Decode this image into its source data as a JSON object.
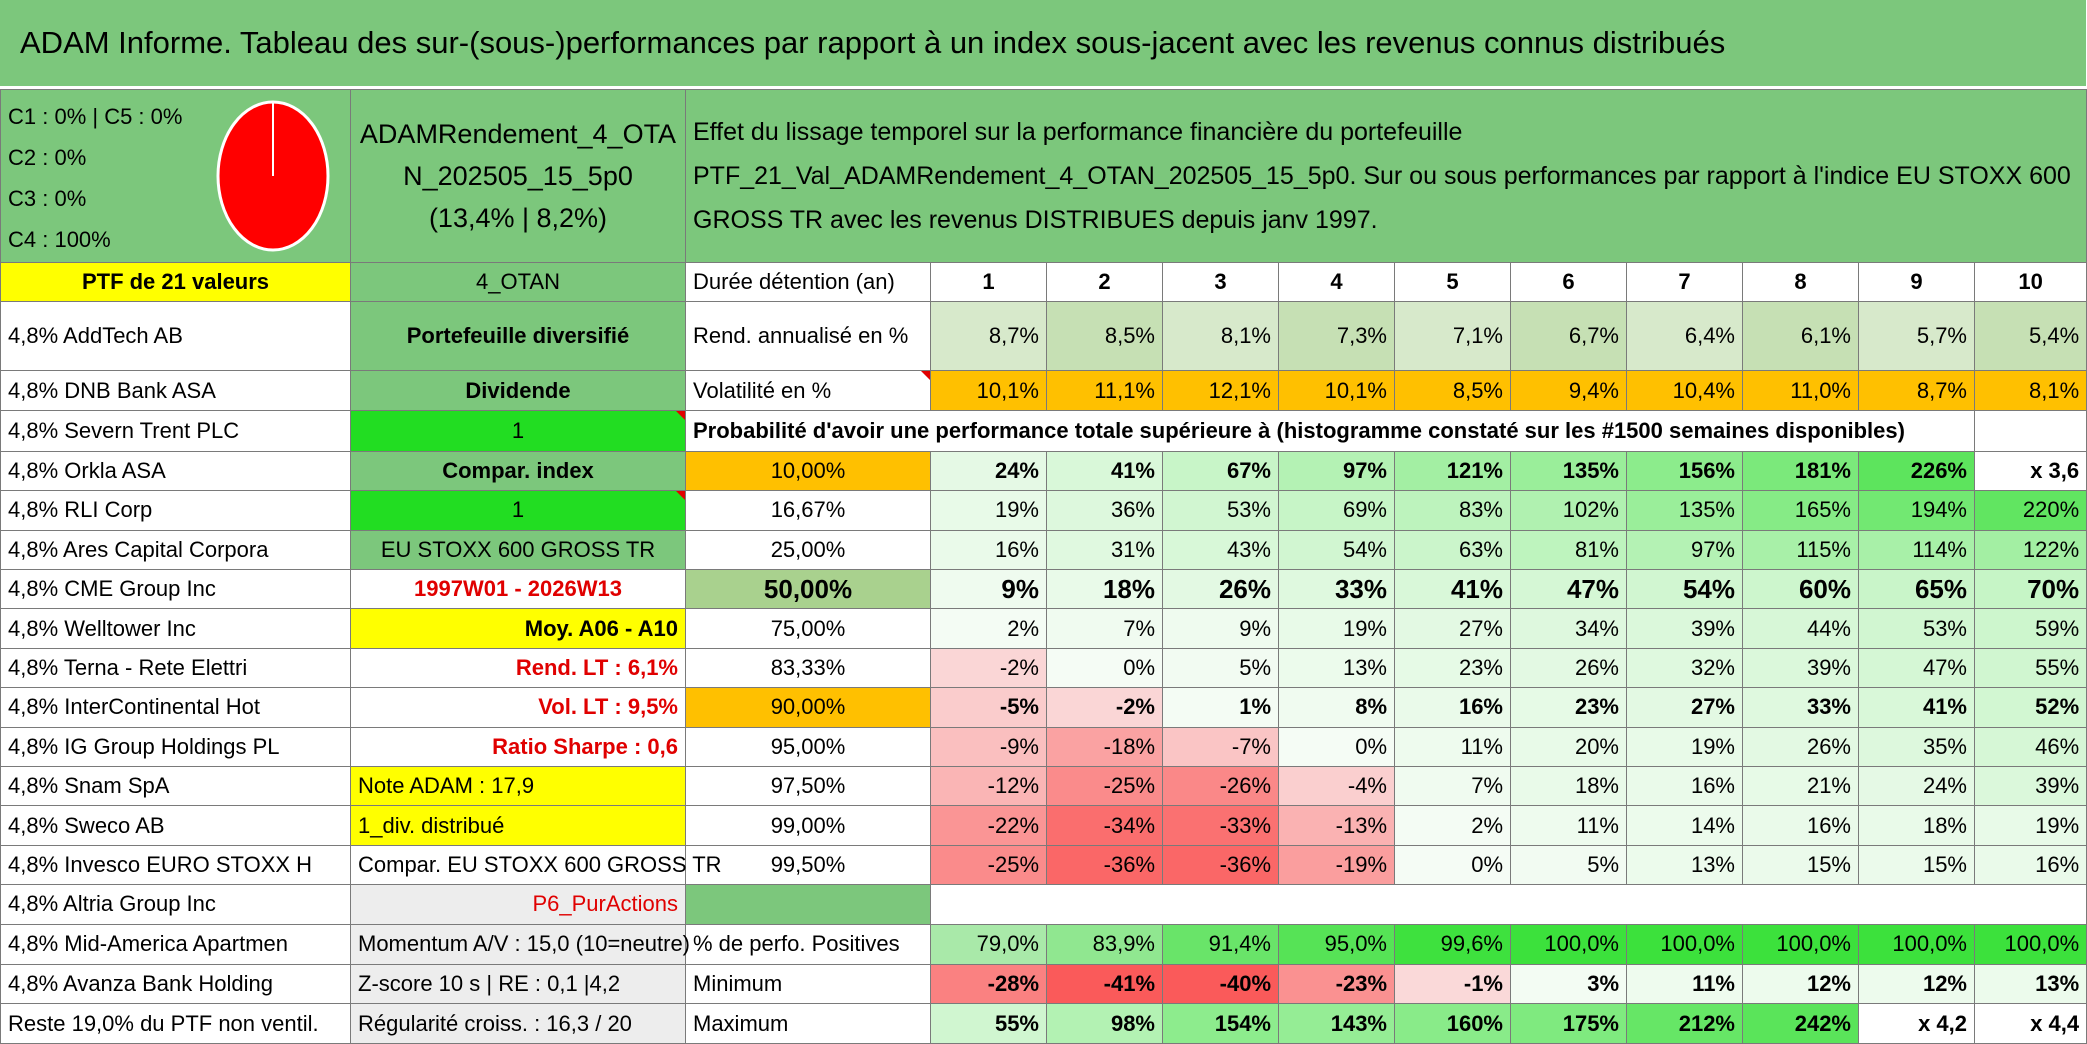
{
  "title": "ADAM Informe. Tableau des sur-(sous-)performances par rapport à un index sous-jacent avec les revenus connus distribués",
  "legend": {
    "c1c5": "C1 : 0% | C5 : 0%",
    "c2": "C2 : 0%",
    "c3": "C3 : 0%",
    "c4": "C4 : 100%"
  },
  "pie": {
    "fill": "#ff0000",
    "label": "pie-chart"
  },
  "portfolio": {
    "name": "ADAMRendement_4_OTAN_202505_15_5p0",
    "perf": "(13,4% | 8,2%)"
  },
  "description": "Effet du lissage temporel sur la performance financière du portefeuille PTF_21_Val_ADAMRendement_4_OTAN_202505_15_5p0. Sur ou sous performances par rapport à l'indice EU STOXX 600 GROSS TR avec les revenus DISTRIBUES depuis janv 1997.",
  "holdings": [
    "PTF de 21 valeurs",
    "4,8% AddTech AB",
    "4,8% DNB Bank ASA",
    "4,8% Severn Trent PLC",
    "4,8% Orkla ASA",
    "4,8% RLI Corp",
    "4,8% Ares Capital Corpora",
    "4,8% CME Group Inc",
    "4,8% Welltower Inc",
    "4,8% Terna - Rete Elettri",
    "4,8% InterContinental Hot",
    "4,8% IG Group Holdings PL",
    "4,8% Snam SpA",
    "4,8% Sweco AB",
    "4,8% Invesco EURO STOXX H",
    "4,8% Altria Group Inc",
    "4,8% Mid-America Apartmen",
    "4,8% Avanza Bank Holding",
    "Reste 19,0% du PTF non ventil."
  ],
  "info": {
    "otan": "4_OTAN",
    "type": "Portefeuille diversifié",
    "dividende": "Dividende",
    "one_a": "1",
    "compar": "Compar. index",
    "one_b": "1",
    "index": "EU STOXX 600 GROSS TR",
    "period": "1997W01 - 2026W13",
    "moy": "Moy. A06 - A10",
    "rend": "Rend. LT : 6,1%",
    "vol": "Vol. LT : 9,5%",
    "sharpe": "Ratio Sharpe : 0,6",
    "note": "Note ADAM : 17,9",
    "div": "1_div. distribué",
    "compar_full": "Compar. EU STOXX 600 GROSS TR",
    "p6": "P6_PurActions",
    "momentum": "Momentum A/V : 15,0 (10=neutre)",
    "zscore": "Z-score 10 s | RE : 0,1 |4,2",
    "regularite": "Régularité croiss. : 16,3 / 20"
  },
  "years_label": "Durée détention (an)",
  "years": [
    "1",
    "2",
    "3",
    "4",
    "5",
    "6",
    "7",
    "8",
    "9",
    "10"
  ],
  "rend_label": "Rend. annualisé en %",
  "rend": [
    "8,7%",
    "8,5%",
    "8,1%",
    "7,3%",
    "7,1%",
    "6,7%",
    "6,4%",
    "6,1%",
    "5,7%",
    "5,4%"
  ],
  "vol_label": "Volatilité en %",
  "vol": [
    "10,1%",
    "11,1%",
    "12,1%",
    "10,1%",
    "8,5%",
    "9,4%",
    "10,4%",
    "11,0%",
    "8,7%",
    "8,1%"
  ],
  "prob_title": "Probabilité d'avoir une performance totale supérieure à (histogramme constaté sur les #1500 semaines disponibles)",
  "quantiles": [
    {
      "q": "10,00%",
      "v": [
        "24%",
        "41%",
        "67%",
        "97%",
        "121%",
        "135%",
        "156%",
        "181%",
        "226%",
        "x 3,6"
      ]
    },
    {
      "q": "16,67%",
      "v": [
        "19%",
        "36%",
        "53%",
        "69%",
        "83%",
        "102%",
        "135%",
        "165%",
        "194%",
        "220%"
      ]
    },
    {
      "q": "25,00%",
      "v": [
        "16%",
        "31%",
        "43%",
        "54%",
        "63%",
        "81%",
        "97%",
        "115%",
        "114%",
        "122%"
      ]
    },
    {
      "q": "50,00%",
      "v": [
        "9%",
        "18%",
        "26%",
        "33%",
        "41%",
        "47%",
        "54%",
        "60%",
        "65%",
        "70%"
      ]
    },
    {
      "q": "75,00%",
      "v": [
        "2%",
        "7%",
        "9%",
        "19%",
        "27%",
        "34%",
        "39%",
        "44%",
        "53%",
        "59%"
      ]
    },
    {
      "q": "83,33%",
      "v": [
        "-2%",
        "0%",
        "5%",
        "13%",
        "23%",
        "26%",
        "32%",
        "39%",
        "47%",
        "55%"
      ]
    },
    {
      "q": "90,00%",
      "v": [
        "-5%",
        "-2%",
        "1%",
        "8%",
        "16%",
        "23%",
        "27%",
        "33%",
        "41%",
        "52%"
      ]
    },
    {
      "q": "95,00%",
      "v": [
        "-9%",
        "-18%",
        "-7%",
        "0%",
        "11%",
        "20%",
        "19%",
        "26%",
        "35%",
        "46%"
      ]
    },
    {
      "q": "97,50%",
      "v": [
        "-12%",
        "-25%",
        "-26%",
        "-4%",
        "7%",
        "18%",
        "16%",
        "21%",
        "24%",
        "39%"
      ]
    },
    {
      "q": "99,00%",
      "v": [
        "-22%",
        "-34%",
        "-33%",
        "-13%",
        "2%",
        "11%",
        "14%",
        "16%",
        "18%",
        "19%"
      ]
    },
    {
      "q": "99,50%",
      "v": [
        "-25%",
        "-36%",
        "-36%",
        "-19%",
        "0%",
        "5%",
        "13%",
        "15%",
        "15%",
        "16%"
      ]
    }
  ],
  "pos_label": "% de perfo. Positives",
  "pos": [
    "79,0%",
    "83,9%",
    "91,4%",
    "95,0%",
    "99,6%",
    "100,0%",
    "100,0%",
    "100,0%",
    "100,0%",
    "100,0%"
  ],
  "min_label": "Minimum",
  "min": [
    "-28%",
    "-41%",
    "-40%",
    "-23%",
    "-1%",
    "3%",
    "11%",
    "12%",
    "12%",
    "13%"
  ],
  "max_label": "Maximum",
  "max": [
    "55%",
    "98%",
    "154%",
    "143%",
    "160%",
    "175%",
    "212%",
    "242%",
    "x 4,2",
    "x 4,4"
  ],
  "colors": {
    "banner": "#7cc77c",
    "orange": "#ffc000",
    "yellow": "#ffff00",
    "bright_green": "#22dd22",
    "red": "#e00000"
  }
}
